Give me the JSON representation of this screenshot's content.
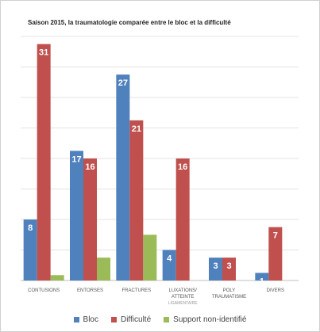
{
  "chart_data": {
    "type": "bar",
    "title": "Saison 2015, la traumatologie comparée entre le bloc et la difficulté",
    "xlabel": "",
    "ylabel": "",
    "ylim": [
      0,
      32
    ],
    "grid": true,
    "legend_position": "bottom",
    "categories": [
      [
        "CONTUSIONS"
      ],
      [
        "ENTORSES"
      ],
      [
        "FRACTURES"
      ],
      [
        "LUXATIONS/",
        "ATTEINTE",
        "LIGAMENTAIRE"
      ],
      [
        "POLY",
        "TRAUMATISME"
      ],
      [
        "DIVERS"
      ]
    ],
    "series": [
      {
        "name": "Bloc",
        "color": "#4f81bd",
        "values": [
          8,
          17,
          27,
          4,
          3,
          1
        ],
        "labels": [
          "8",
          "17",
          "27",
          "4",
          "3",
          "1"
        ]
      },
      {
        "name": "Difficulté",
        "color": "#c0504d",
        "values": [
          31,
          16,
          21,
          16,
          3,
          7
        ],
        "labels": [
          "31",
          "16",
          "21",
          "16",
          "3",
          "7"
        ]
      },
      {
        "name": "Support non-identifié",
        "color": "#9bbb59",
        "values": [
          0.7,
          3,
          6,
          0,
          0,
          0
        ],
        "labels": [
          "",
          "",
          "",
          "",
          "",
          ""
        ]
      }
    ]
  }
}
